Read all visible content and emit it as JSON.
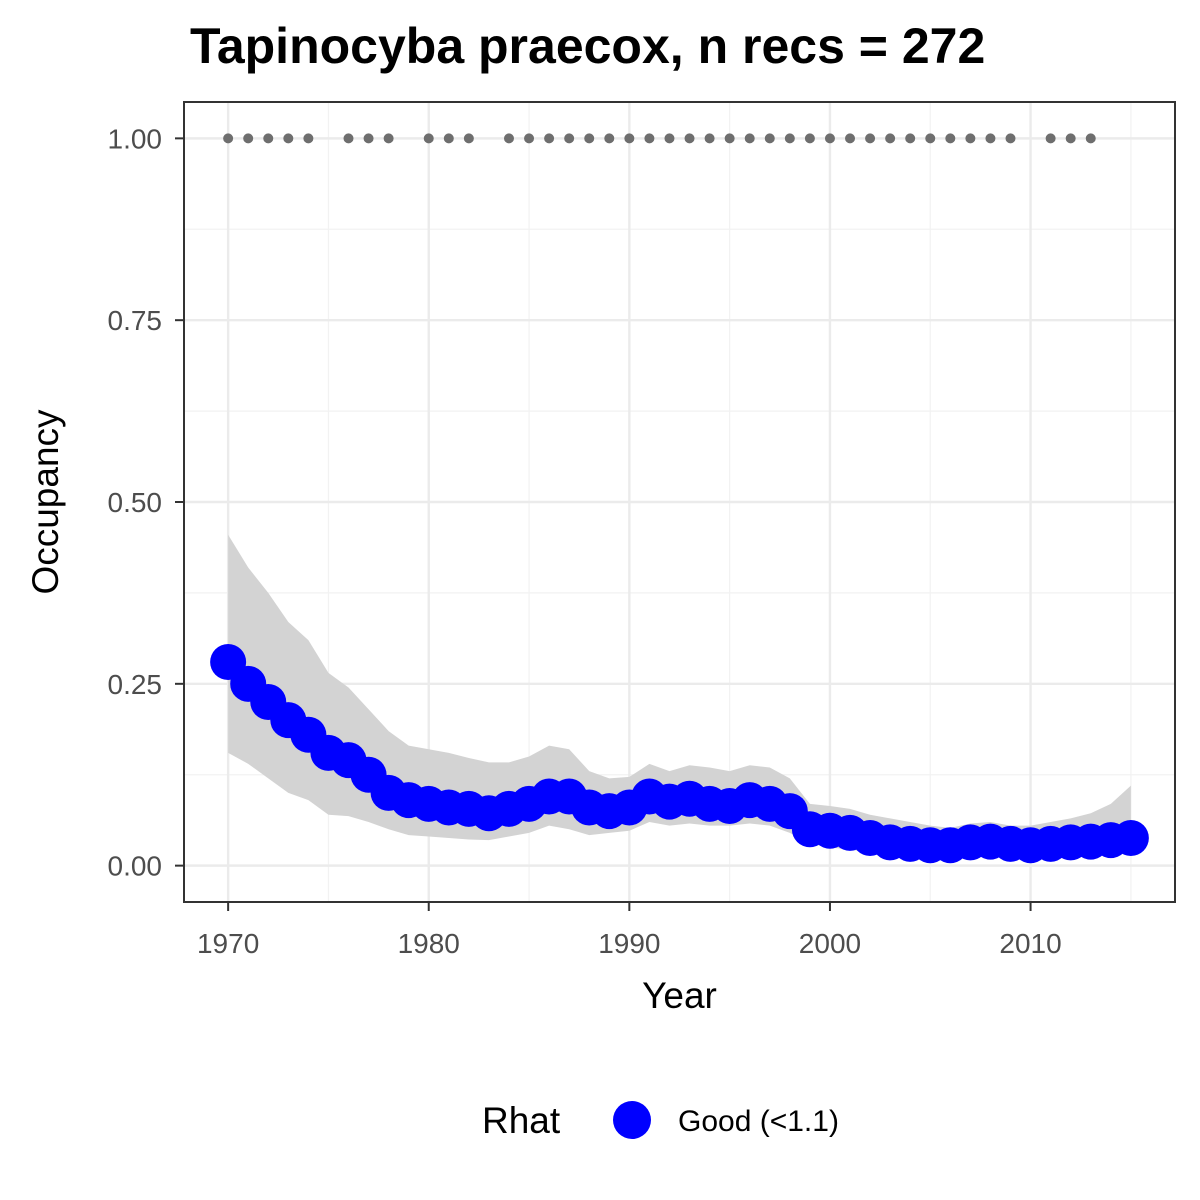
{
  "chart_data": {
    "type": "line",
    "title": "Tapinocyba praecox, n recs = 272",
    "xlabel": "Year",
    "ylabel": "Occupancy",
    "xlim": [
      1967.8,
      2017.2
    ],
    "ylim": [
      -0.05,
      1.05
    ],
    "x_ticks": [
      1970,
      1980,
      1990,
      2000,
      2010
    ],
    "x_tick_labels": [
      "1970",
      "1980",
      "1990",
      "2000",
      "2010"
    ],
    "y_ticks": [
      0,
      0.25,
      0.5,
      0.75,
      1
    ],
    "y_tick_labels": [
      "0.00",
      "0.25",
      "0.50",
      "0.75",
      "1.00"
    ],
    "grid": true,
    "legend_position": "bottom",
    "legend": {
      "title": "Rhat",
      "entries": [
        {
          "label": "Good (<1.1)",
          "color": "#0000ff"
        }
      ]
    },
    "series": [
      {
        "name": "Good (<1.1)",
        "color": "#0000ff",
        "x": [
          1970,
          1971,
          1972,
          1973,
          1974,
          1975,
          1976,
          1977,
          1978,
          1979,
          1980,
          1981,
          1982,
          1983,
          1984,
          1985,
          1986,
          1987,
          1988,
          1989,
          1990,
          1991,
          1992,
          1993,
          1994,
          1995,
          1996,
          1997,
          1998,
          1999,
          2000,
          2001,
          2002,
          2003,
          2004,
          2005,
          2006,
          2007,
          2008,
          2009,
          2010,
          2011,
          2012,
          2013,
          2014,
          2015
        ],
        "y": [
          0.28,
          0.25,
          0.225,
          0.2,
          0.18,
          0.155,
          0.145,
          0.125,
          0.1,
          0.09,
          0.085,
          0.08,
          0.078,
          0.072,
          0.078,
          0.085,
          0.095,
          0.095,
          0.08,
          0.075,
          0.08,
          0.095,
          0.088,
          0.092,
          0.085,
          0.082,
          0.09,
          0.085,
          0.075,
          0.05,
          0.048,
          0.045,
          0.038,
          0.032,
          0.03,
          0.028,
          0.028,
          0.032,
          0.033,
          0.03,
          0.028,
          0.03,
          0.032,
          0.033,
          0.035,
          0.038
        ]
      }
    ],
    "credible_interval": {
      "color": "#d3d3d3",
      "x": [
        1970,
        1971,
        1972,
        1973,
        1974,
        1975,
        1976,
        1977,
        1978,
        1979,
        1980,
        1981,
        1982,
        1983,
        1984,
        1985,
        1986,
        1987,
        1988,
        1989,
        1990,
        1991,
        1992,
        1993,
        1994,
        1995,
        1996,
        1997,
        1998,
        1999,
        2000,
        2001,
        2002,
        2003,
        2004,
        2005,
        2006,
        2007,
        2008,
        2009,
        2010,
        2011,
        2012,
        2013,
        2014,
        2015
      ],
      "lower": [
        0.155,
        0.14,
        0.12,
        0.1,
        0.09,
        0.07,
        0.068,
        0.06,
        0.05,
        0.042,
        0.04,
        0.038,
        0.036,
        0.035,
        0.04,
        0.045,
        0.055,
        0.05,
        0.042,
        0.045,
        0.048,
        0.06,
        0.055,
        0.058,
        0.055,
        0.055,
        0.058,
        0.055,
        0.045,
        0.03,
        0.025,
        0.022,
        0.018,
        0.015,
        0.013,
        0.012,
        0.012,
        0.014,
        0.015,
        0.013,
        0.012,
        0.012,
        0.014,
        0.015,
        0.016,
        0.018
      ],
      "upper": [
        0.455,
        0.41,
        0.375,
        0.335,
        0.31,
        0.265,
        0.245,
        0.215,
        0.185,
        0.165,
        0.16,
        0.155,
        0.148,
        0.142,
        0.142,
        0.15,
        0.165,
        0.16,
        0.13,
        0.12,
        0.122,
        0.14,
        0.13,
        0.138,
        0.135,
        0.13,
        0.138,
        0.135,
        0.12,
        0.085,
        0.082,
        0.078,
        0.07,
        0.065,
        0.06,
        0.055,
        0.052,
        0.058,
        0.06,
        0.055,
        0.055,
        0.06,
        0.065,
        0.072,
        0.085,
        0.11
      ]
    },
    "records": {
      "color": "#6e6e6e",
      "value": 1.0,
      "years": [
        1970,
        1971,
        1972,
        1973,
        1974,
        1976,
        1977,
        1978,
        1980,
        1981,
        1982,
        1984,
        1985,
        1986,
        1987,
        1988,
        1989,
        1990,
        1991,
        1992,
        1993,
        1994,
        1995,
        1996,
        1997,
        1998,
        1999,
        2000,
        2001,
        2002,
        2003,
        2004,
        2005,
        2006,
        2007,
        2008,
        2009,
        2011,
        2012,
        2013
      ]
    }
  }
}
